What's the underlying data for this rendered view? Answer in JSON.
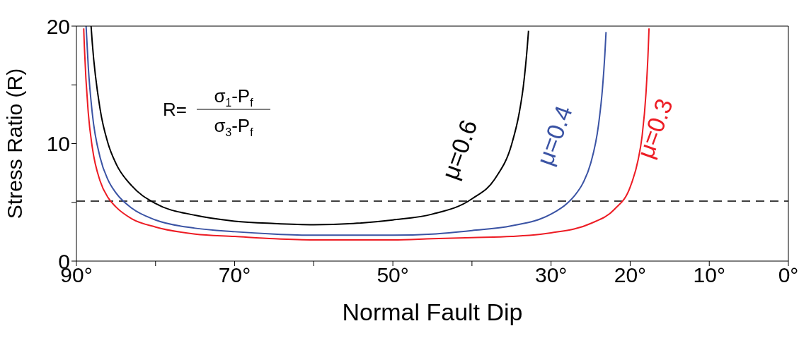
{
  "chart_data": {
    "type": "line",
    "xlabel": "Normal Fault Dip",
    "ylabel": "Stress Ratio (R)",
    "xlim": [
      90,
      0
    ],
    "xticks": [
      {
        "value": 90,
        "label": "90°"
      },
      {
        "value": 80,
        "label": null
      },
      {
        "value": 70,
        "label": "70°"
      },
      {
        "value": 60,
        "label": null
      },
      {
        "value": 50,
        "label": "50°"
      },
      {
        "value": 40,
        "label": null
      },
      {
        "value": 30,
        "label": "30°"
      },
      {
        "value": 20,
        "label": "20°"
      },
      {
        "value": 10,
        "label": "10°"
      },
      {
        "value": 0,
        "label": "0°"
      }
    ],
    "ylim": [
      0,
      20
    ],
    "yticks": [
      0,
      {
        "value": 5,
        "label": null
      },
      10,
      {
        "value": 15,
        "label": null
      },
      20
    ],
    "marker": "none",
    "line_style": "solid",
    "series": [
      {
        "name": "μ=0.6",
        "color": "#000000",
        "x": [
          88.15,
          88,
          87,
          86,
          85,
          83,
          80,
          75,
          70,
          65,
          60,
          55,
          50,
          45,
          40,
          37,
          35,
          34,
          33.5,
          33,
          32.85
        ],
        "values": [
          20.0,
          18.6,
          12.9,
          10.0,
          8.3,
          6.4,
          4.9,
          3.9,
          3.4,
          3.2,
          3.1,
          3.2,
          3.5,
          4.0,
          5.3,
          7.1,
          9.9,
          12.7,
          14.9,
          18.3,
          19.6
        ]
      },
      {
        "name": "μ=0.4",
        "color": "#3a53a4",
        "x": [
          88.78,
          88.5,
          88,
          87,
          86,
          85,
          83,
          80,
          75,
          70,
          65,
          60,
          55,
          50,
          45,
          40,
          35,
          30,
          28,
          27,
          26,
          25,
          24,
          23.5,
          23.2,
          23.05
        ],
        "values": [
          20.0,
          16.5,
          12.6,
          8.8,
          6.9,
          5.8,
          4.5,
          3.5,
          2.8,
          2.5,
          2.3,
          2.2,
          2.2,
          2.2,
          2.3,
          2.6,
          3.0,
          4.0,
          4.9,
          5.6,
          6.6,
          8.3,
          11.6,
          14.7,
          17.6,
          19.5
        ]
      },
      {
        "name": "μ=0.3",
        "color": "#ed1c24",
        "x": [
          89.08,
          89,
          88.5,
          88,
          87,
          86,
          85,
          83,
          80,
          75,
          70,
          65,
          60,
          55,
          50,
          45,
          40,
          35,
          30,
          25,
          22,
          20,
          19,
          18.5,
          18,
          17.7,
          17.62
        ],
        "values": [
          19.8,
          18.3,
          12.6,
          9.7,
          6.8,
          5.4,
          4.6,
          3.6,
          2.9,
          2.3,
          2.1,
          1.9,
          1.8,
          1.8,
          1.8,
          1.9,
          2.0,
          2.1,
          2.4,
          3.2,
          4.4,
          6.3,
          8.6,
          10.6,
          14.3,
          18.3,
          19.8
        ]
      }
    ],
    "ref_lines": [
      {
        "axis": "y",
        "value": 5.1,
        "color": "#000000",
        "line_style": "dashed"
      }
    ],
    "annotations": [
      "R=",
      "σ$_{1}$-P$_{f}$",
      "σ$_{3}$-P$_{f}$"
    ]
  }
}
